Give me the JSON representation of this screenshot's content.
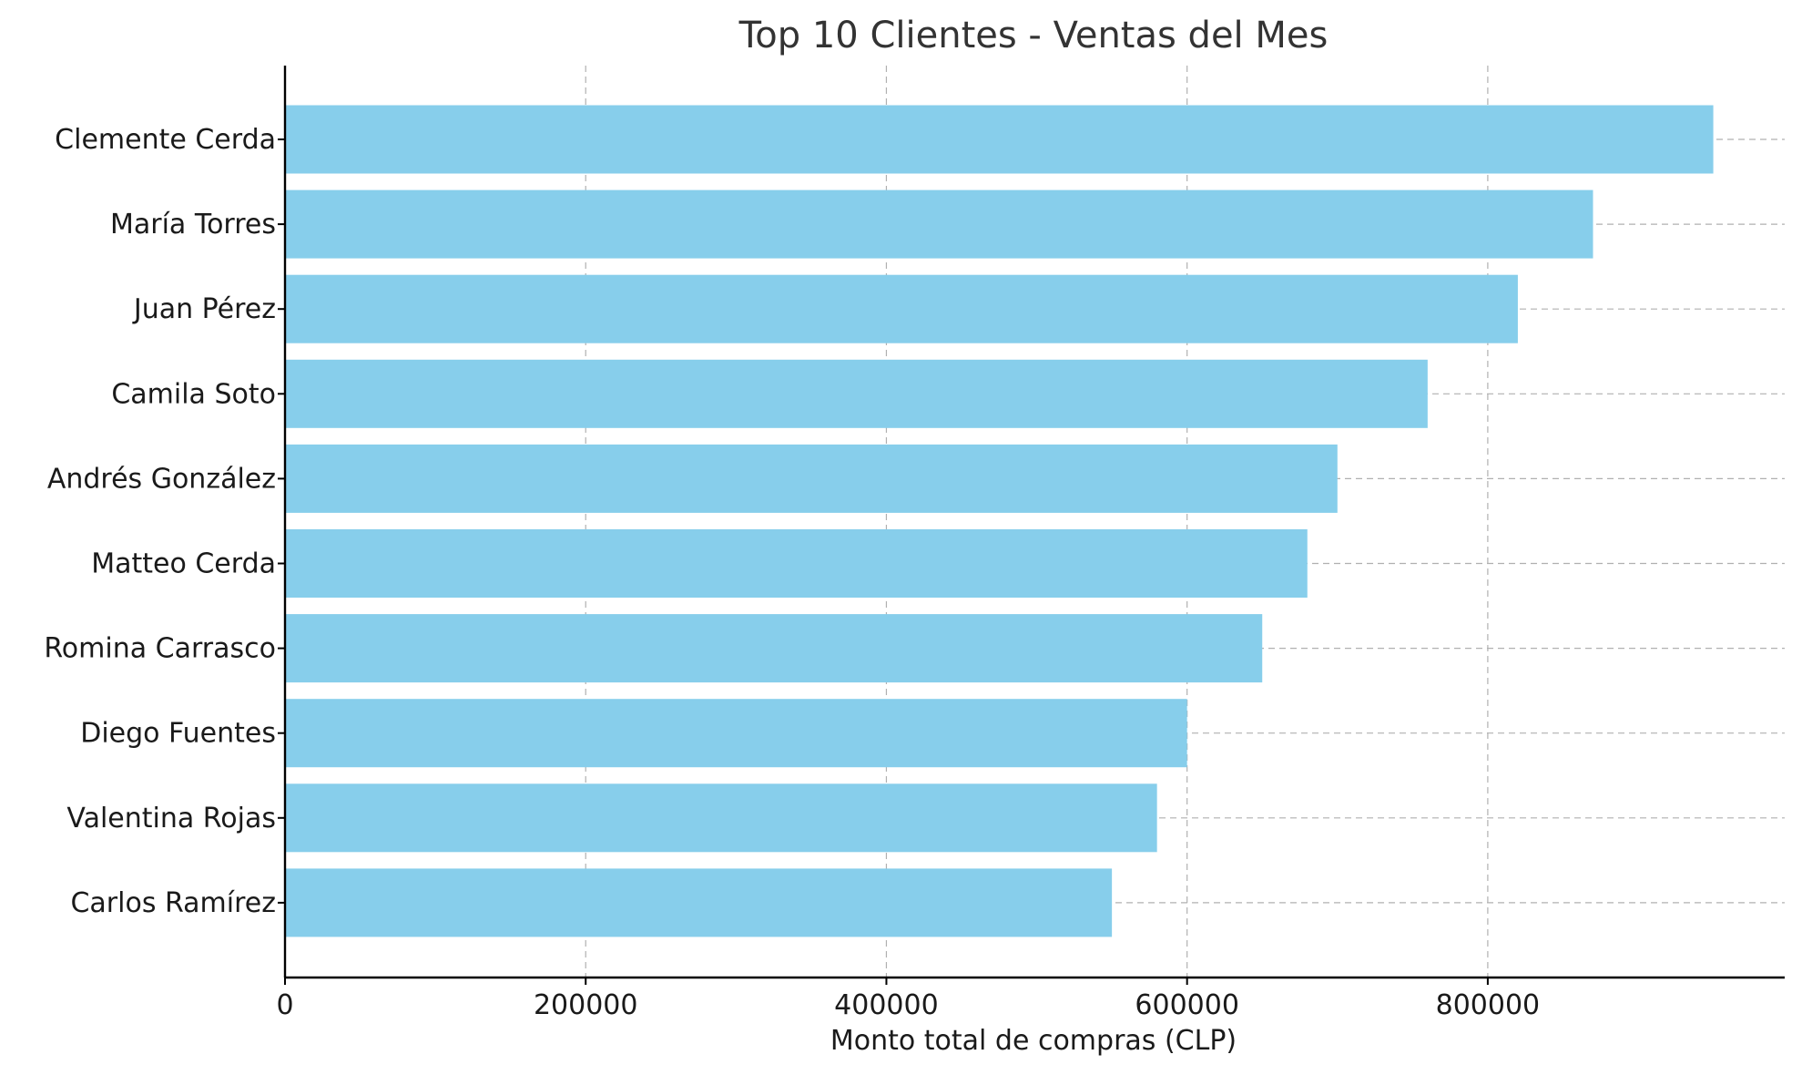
{
  "chart_data": {
    "type": "bar",
    "orientation": "horizontal",
    "title": "Top 10 Clientes - Ventas del Mes",
    "xlabel": "Monto total de compras (CLP)",
    "ylabel": "",
    "categories": [
      "Clemente Cerda",
      "María Torres",
      "Juan Pérez",
      "Camila Soto",
      "Andrés González",
      "Matteo Cerda",
      "Romina Carrasco",
      "Diego Fuentes",
      "Valentina Rojas",
      "Carlos Ramírez"
    ],
    "values": [
      950000,
      870000,
      820000,
      760000,
      700000,
      680000,
      650000,
      600000,
      580000,
      550000
    ],
    "xlim": [
      0,
      997500
    ],
    "xticks": [
      0,
      200000,
      400000,
      600000,
      800000
    ],
    "xtick_labels": [
      "0",
      "200000",
      "400000",
      "600000",
      "800000"
    ],
    "grid": true,
    "bar_color": "#87ceeb"
  }
}
